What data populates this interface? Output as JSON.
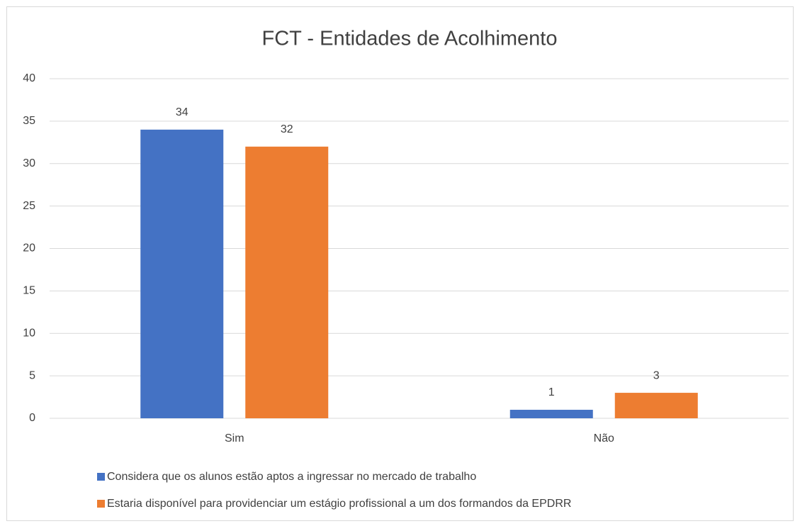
{
  "chart_data": {
    "type": "bar",
    "title": "FCT - Entidades de Acolhimento",
    "categories": [
      "Sim",
      "Não"
    ],
    "series": [
      {
        "name": "Considera que os alunos estão aptos a ingressar no mercado de trabalho",
        "color": "#4472c4",
        "values": [
          34,
          1
        ]
      },
      {
        "name": "Estaria disponível para providenciar um estágio profissional a um dos formandos da EPDRR",
        "color": "#ed7d31",
        "values": [
          32,
          3
        ]
      }
    ],
    "ylim": [
      0,
      40
    ],
    "yticks": [
      0,
      5,
      10,
      15,
      20,
      25,
      30,
      35,
      40
    ],
    "grid": true,
    "legend": "bottom"
  }
}
